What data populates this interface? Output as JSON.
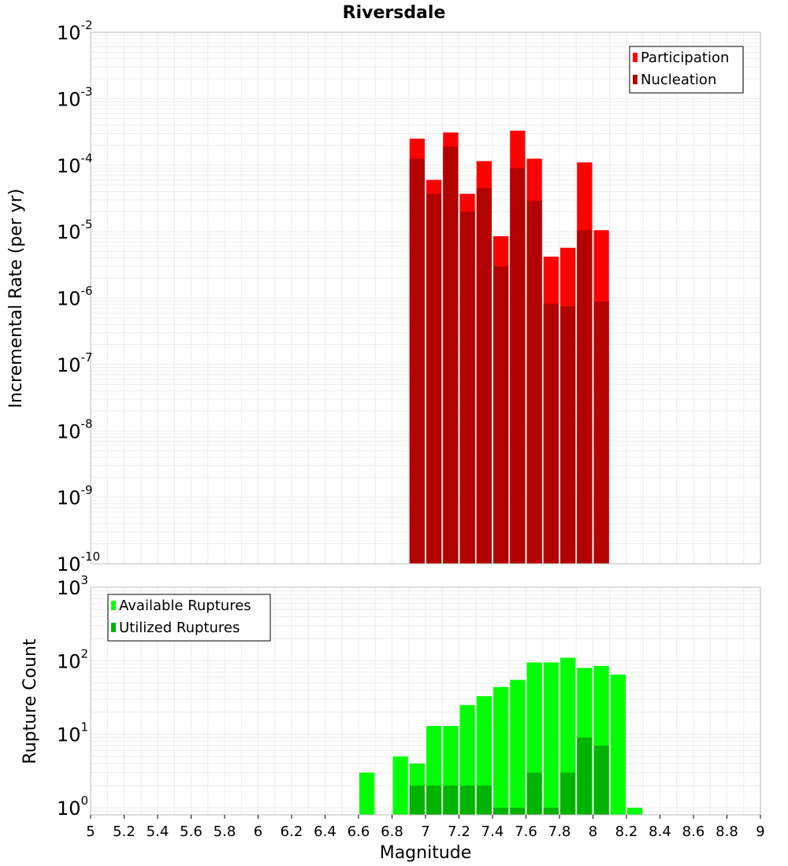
{
  "title": "Riversdale",
  "xlabel": "Magnitude",
  "colors": {
    "participation": "#ff0000",
    "nucleation": "#b30000",
    "available": "#00ff00",
    "utilized": "#00b300",
    "grid": "#ececec",
    "frame": "#b8b8b8"
  },
  "chart_data": [
    {
      "type": "bar",
      "panel": "top",
      "ylabel": "Incremental Rate (per yr)",
      "yscale": "log",
      "ylim": [
        1e-10,
        0.01
      ],
      "xlim": [
        5,
        9
      ],
      "y_tick_exponents": [
        "-10",
        "-9",
        "-8",
        "-7",
        "-6",
        "-5",
        "-4",
        "-3",
        "-2"
      ],
      "y_tick_base": "10",
      "bin_width": 0.1,
      "x": [
        7.0,
        7.1,
        7.2,
        7.3,
        7.4,
        7.5,
        7.6,
        7.7,
        7.8,
        7.9,
        8.0,
        8.1
      ],
      "series": [
        {
          "name": "Participation",
          "color_key": "participation",
          "values": [
            0.00025,
            6e-05,
            0.00031,
            3.7e-05,
            0.000115,
            8.5e-06,
            0.00033,
            0.000125,
            4.2e-06,
            5.7e-06,
            0.00011,
            1.05e-05
          ]
        },
        {
          "name": "Nucleation",
          "color_key": "nucleation",
          "values": [
            0.000125,
            3.7e-05,
            0.00019,
            2e-05,
            4.5e-05,
            3e-06,
            9e-05,
            2.9e-05,
            8.2e-07,
            7.5e-07,
            1.05e-05,
            8.8e-07
          ]
        }
      ],
      "legend": [
        "Participation",
        "Nucleation"
      ],
      "legend_position": "top-right"
    },
    {
      "type": "bar",
      "panel": "bottom",
      "ylabel": "Rupture Count",
      "yscale": "log",
      "ylim": [
        0.8,
        1000
      ],
      "xlim": [
        5,
        9
      ],
      "y_tick_exponents": [
        "0",
        "1",
        "2",
        "3"
      ],
      "y_tick_base": "10",
      "bin_width": 0.1,
      "x": [
        6.7,
        6.9,
        7.0,
        7.1,
        7.2,
        7.3,
        7.4,
        7.5,
        7.6,
        7.7,
        7.8,
        7.9,
        8.0,
        8.1,
        8.2,
        8.3
      ],
      "series": [
        {
          "name": "Available Ruptures",
          "color_key": "available",
          "values": [
            3,
            5,
            4,
            13,
            13,
            25,
            33,
            44,
            55,
            95,
            95,
            110,
            80,
            85,
            65,
            1
          ]
        },
        {
          "name": "Utilized Ruptures",
          "color_key": "utilized",
          "values": [
            0,
            0,
            2,
            2,
            2,
            2,
            2,
            1,
            1,
            3,
            1,
            3,
            9,
            7,
            0,
            0
          ]
        }
      ],
      "legend": [
        "Available Ruptures",
        "Utilized Ruptures"
      ],
      "legend_position": "top-left"
    }
  ],
  "x_ticks": [
    "5",
    "5.2",
    "5.4",
    "5.6",
    "5.8",
    "6",
    "6.2",
    "6.4",
    "6.6",
    "6.8",
    "7",
    "7.2",
    "7.4",
    "7.6",
    "7.8",
    "8",
    "8.2",
    "8.4",
    "8.6",
    "8.8",
    "9"
  ]
}
